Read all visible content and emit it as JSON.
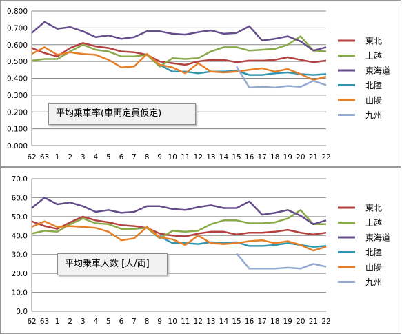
{
  "chart_data": [
    {
      "type": "line",
      "title": "平均乗車率(車両定員仮定)",
      "ylim": [
        0,
        0.8
      ],
      "yticks": [
        "0.000",
        "0.100",
        "0.200",
        "0.300",
        "0.400",
        "0.500",
        "0.600",
        "0.700",
        "0.800"
      ],
      "categories": [
        "62",
        "63",
        "1",
        "2",
        "3",
        "4",
        "5",
        "6",
        "7",
        "8",
        "9",
        "10",
        "11",
        "12",
        "13",
        "14",
        "15",
        "16",
        "17",
        "18",
        "19",
        "20",
        "21",
        "22"
      ],
      "grid": true,
      "legend": "right",
      "series": [
        {
          "name": "東北",
          "color": "#b3413f",
          "values": [
            0.58,
            0.55,
            0.53,
            0.58,
            0.61,
            0.59,
            0.58,
            0.56,
            0.555,
            0.54,
            0.5,
            0.49,
            0.48,
            0.5,
            0.51,
            0.51,
            0.495,
            0.505,
            0.505,
            0.51,
            0.525,
            0.51,
            0.495,
            0.505
          ]
        },
        {
          "name": "上越",
          "color": "#8aaa4a",
          "values": [
            0.505,
            0.515,
            0.515,
            0.56,
            0.6,
            0.57,
            0.56,
            0.53,
            0.53,
            0.54,
            0.47,
            0.52,
            0.515,
            0.52,
            0.56,
            0.585,
            0.585,
            0.565,
            0.57,
            0.575,
            0.6,
            0.65,
            0.565,
            0.56
          ]
        },
        {
          "name": "東海道",
          "color": "#654c8b",
          "values": [
            0.67,
            0.735,
            0.695,
            0.705,
            0.68,
            0.645,
            0.655,
            0.635,
            0.645,
            0.68,
            0.68,
            0.665,
            0.66,
            0.675,
            0.685,
            0.665,
            0.67,
            0.71,
            0.625,
            0.635,
            0.65,
            0.62,
            0.565,
            0.585
          ]
        },
        {
          "name": "北陸",
          "color": "#3196ad",
          "values": [
            null,
            null,
            null,
            null,
            null,
            null,
            null,
            null,
            null,
            null,
            0.48,
            0.44,
            0.44,
            0.43,
            0.44,
            0.44,
            0.445,
            0.42,
            0.42,
            0.43,
            0.435,
            0.425,
            0.42,
            0.425
          ]
        },
        {
          "name": "山陽",
          "color": "#e57f2a",
          "values": [
            0.545,
            0.585,
            0.54,
            0.555,
            0.545,
            0.54,
            0.51,
            0.465,
            0.47,
            0.545,
            0.48,
            0.465,
            0.43,
            0.49,
            0.44,
            0.435,
            0.44,
            0.45,
            0.46,
            0.44,
            0.455,
            0.425,
            0.39,
            0.41
          ]
        },
        {
          "name": "九州",
          "color": "#93a9cf",
          "values": [
            null,
            null,
            null,
            null,
            null,
            null,
            null,
            null,
            null,
            null,
            null,
            null,
            null,
            null,
            null,
            null,
            0.47,
            0.345,
            0.35,
            0.345,
            0.355,
            0.35,
            0.385,
            0.36
          ]
        }
      ]
    },
    {
      "type": "line",
      "title": "平均乗車人数 [人/両]",
      "ylim": [
        0,
        70
      ],
      "yticks": [
        "0.0",
        "10.0",
        "20.0",
        "30.0",
        "40.0",
        "50.0",
        "60.0",
        "70.0"
      ],
      "categories": [
        "62",
        "63",
        "1",
        "2",
        "3",
        "4",
        "5",
        "6",
        "7",
        "8",
        "9",
        "10",
        "11",
        "12",
        "13",
        "14",
        "15",
        "16",
        "17",
        "18",
        "19",
        "20",
        "21",
        "22"
      ],
      "grid": true,
      "legend": "right",
      "series": [
        {
          "name": "東北",
          "color": "#b3413f",
          "values": [
            47.5,
            45,
            43.5,
            47,
            50,
            48,
            47,
            45.5,
            45,
            44,
            41,
            40,
            39.5,
            41,
            42,
            42,
            40.5,
            41.5,
            41.5,
            42,
            43,
            41.5,
            40.5,
            41.5
          ]
        },
        {
          "name": "上越",
          "color": "#8aaa4a",
          "values": [
            41,
            42.5,
            42,
            46,
            49,
            46.5,
            46,
            43.5,
            43.5,
            44,
            38.5,
            42.5,
            42,
            42.5,
            46,
            48,
            48,
            46.5,
            46.5,
            47,
            49,
            53.5,
            46,
            46
          ]
        },
        {
          "name": "東海道",
          "color": "#654c8b",
          "values": [
            54.5,
            60,
            56.5,
            57.5,
            55.5,
            52.5,
            53.5,
            52,
            52.5,
            55.5,
            55.5,
            54,
            53.5,
            55,
            56,
            54.5,
            54.5,
            58,
            51,
            52,
            53.5,
            50.5,
            46,
            48
          ]
        },
        {
          "name": "北陸",
          "color": "#3196ad",
          "values": [
            null,
            null,
            null,
            null,
            null,
            null,
            null,
            null,
            null,
            null,
            39.5,
            36,
            36,
            35.5,
            36.5,
            36,
            36.5,
            34.5,
            34.5,
            35,
            36,
            35,
            34,
            34.5
          ]
        },
        {
          "name": "山陽",
          "color": "#e57f2a",
          "values": [
            44.5,
            47.5,
            44.5,
            45,
            44.5,
            44,
            42,
            37.5,
            38.5,
            44.5,
            39,
            38,
            35,
            40,
            36,
            35.5,
            36,
            37,
            37.5,
            36,
            37,
            35,
            32,
            34
          ]
        },
        {
          "name": "九州",
          "color": "#93a9cf",
          "values": [
            null,
            null,
            null,
            null,
            null,
            null,
            null,
            null,
            null,
            null,
            null,
            null,
            null,
            null,
            null,
            null,
            30.5,
            22.5,
            22.5,
            22.5,
            23,
            22.5,
            25,
            23.5
          ]
        }
      ]
    }
  ]
}
